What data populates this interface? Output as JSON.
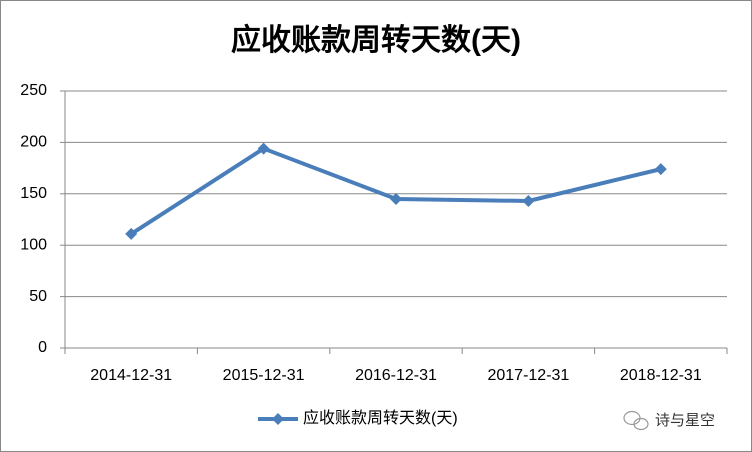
{
  "chart_data": {
    "type": "line",
    "title": "应收账款周转天数(天)",
    "categories": [
      "2014-12-31",
      "2015-12-31",
      "2016-12-31",
      "2017-12-31",
      "2018-12-31"
    ],
    "series": [
      {
        "name": "应收账款周转天数(天)",
        "color": "#4a7ebb",
        "values": [
          111,
          194,
          145,
          143,
          174
        ]
      }
    ],
    "ylim": [
      0,
      250
    ],
    "yticks": [
      0,
      50,
      100,
      150,
      200,
      250
    ],
    "grid": true,
    "legend": "bottom",
    "watermark": "诗与星空"
  }
}
